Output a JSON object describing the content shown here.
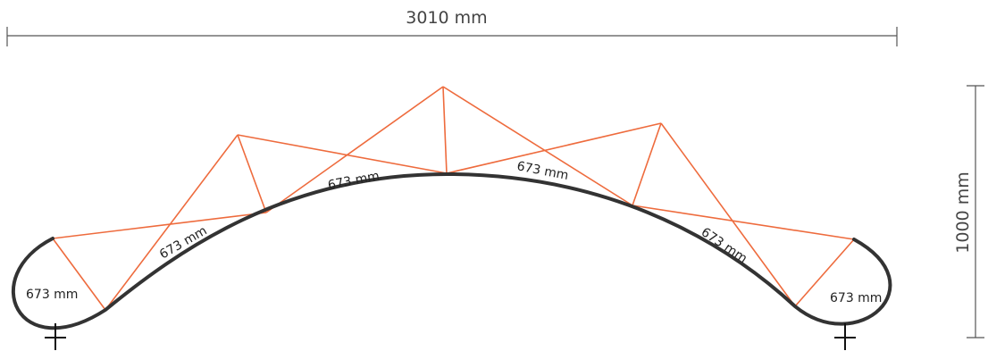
{
  "diagram": {
    "width_dimension": "3010 mm",
    "height_dimension": "1000 mm",
    "segment_labels": [
      "673 mm",
      "673 mm",
      "673 mm",
      "673 mm",
      "673 mm",
      "673 mm"
    ],
    "colors": {
      "truss": "#ee6b3d",
      "arch": "#333333",
      "dimension": "#555555"
    }
  }
}
